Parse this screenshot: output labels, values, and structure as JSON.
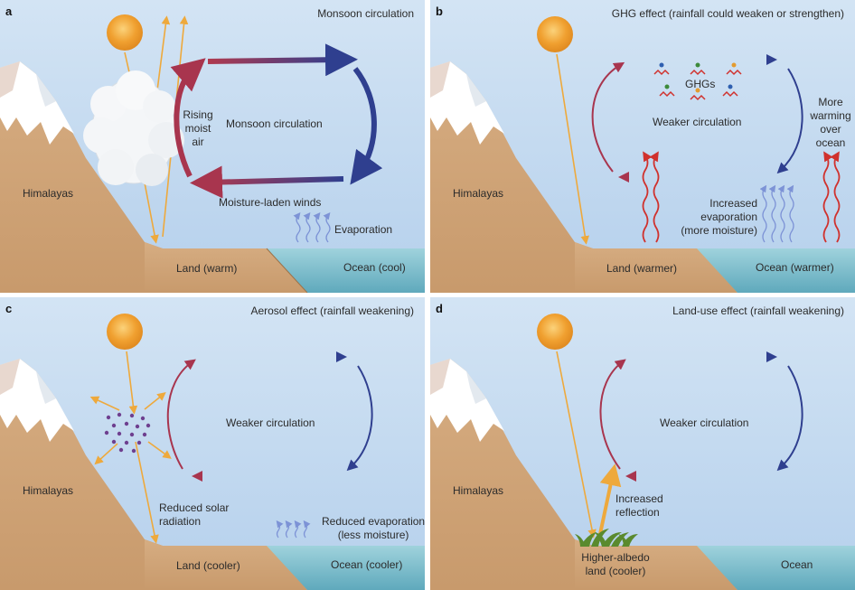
{
  "colors": {
    "sky_top": "#cfe1f3",
    "sky_bottom": "#b8d3ee",
    "land": "#d1a87c",
    "land_edge": "#b38257",
    "snow": "#ffffff",
    "mountain_shadow": "#e7d6cc",
    "ocean": "#8ec8d4",
    "ocean_dark": "#5fa9bc",
    "sun": "#f0a030",
    "sun_ray": "#f2b24a",
    "circulation_red": "#a8354e",
    "circulation_blue": "#2f3f8f",
    "heat_wave": "#d0312d",
    "evap_wave": "#7d93d6",
    "aerosol": "#6e3f8f",
    "vegetation": "#5a8a2e"
  },
  "panels": {
    "a": {
      "letter": "a",
      "title": "Monsoon circulation",
      "center_label": "Monsoon circulation",
      "rising_label": [
        "Rising",
        "moist",
        "air"
      ],
      "winds_label": "Moisture-laden winds",
      "evaporation_label": "Evaporation",
      "mountain_label": "Himalayas",
      "land_label": "Land (warm)",
      "ocean_label": "Ocean (cool)",
      "sun_icon": "sun-icon",
      "cloud_icon": "cloud-icon"
    },
    "b": {
      "letter": "b",
      "title": "GHG effect (rainfall could weaken or strengthen)",
      "ghg_label": "GHGs",
      "center_label": "Weaker circulation",
      "ocean_warming_label": [
        "More",
        "warming",
        "over",
        "ocean"
      ],
      "evaporation_label": [
        "Increased",
        "evaporation",
        "(more moisture)"
      ],
      "mountain_label": "Himalayas",
      "land_label": "Land (warmer)",
      "ocean_label": "Ocean (warmer)",
      "sun_icon": "sun-icon"
    },
    "c": {
      "letter": "c",
      "title": "Aerosol effect (rainfall weakening)",
      "center_label": "Weaker circulation",
      "radiation_label": [
        "Reduced solar",
        "radiation"
      ],
      "evaporation_label": [
        "Reduced evaporation",
        "(less moisture)"
      ],
      "mountain_label": "Himalayas",
      "land_label": "Land (cooler)",
      "ocean_label": "Ocean (cooler)",
      "sun_icon": "sun-icon"
    },
    "d": {
      "letter": "d",
      "title": "Land-use effect (rainfall weakening)",
      "center_label": "Weaker circulation",
      "reflection_label": [
        "Increased",
        "reflection"
      ],
      "land_label": [
        "Higher-albedo",
        "land (cooler)"
      ],
      "mountain_label": "Himalayas",
      "ocean_label": "Ocean",
      "sun_icon": "sun-icon",
      "grass_icon": "grass-icon"
    }
  }
}
